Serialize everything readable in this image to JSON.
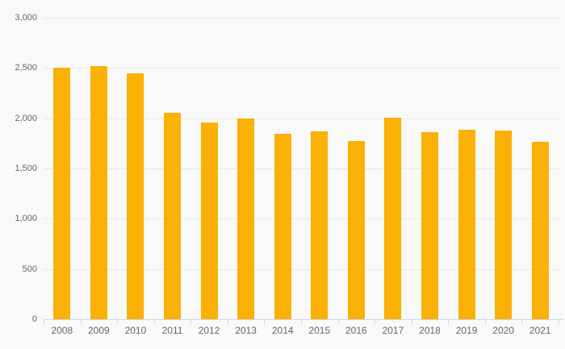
{
  "chart_data": {
    "type": "bar",
    "title": "",
    "xlabel": "",
    "ylabel": "",
    "categories": [
      "2008",
      "2009",
      "2010",
      "2011",
      "2012",
      "2013",
      "2014",
      "2015",
      "2016",
      "2017",
      "2018",
      "2019",
      "2020",
      "2021"
    ],
    "values": [
      2500,
      2520,
      2450,
      2055,
      1960,
      2000,
      1845,
      1870,
      1770,
      2005,
      1860,
      1885,
      1875,
      1765
    ],
    "ylim": [
      0,
      3000
    ],
    "ytick_interval": 500,
    "ytick_labels": [
      "0",
      "500",
      "1,000",
      "1,500",
      "2,000",
      "2,500",
      "3,000"
    ],
    "grid": "horizontal-only",
    "legend": "none",
    "colors": {
      "bar": "#fab005",
      "background": "#f9f9f9",
      "gridline": "#e7e7e7",
      "axis_line": "#ccd6eb",
      "tick": "#ccd6eb",
      "label": "#666666"
    }
  }
}
